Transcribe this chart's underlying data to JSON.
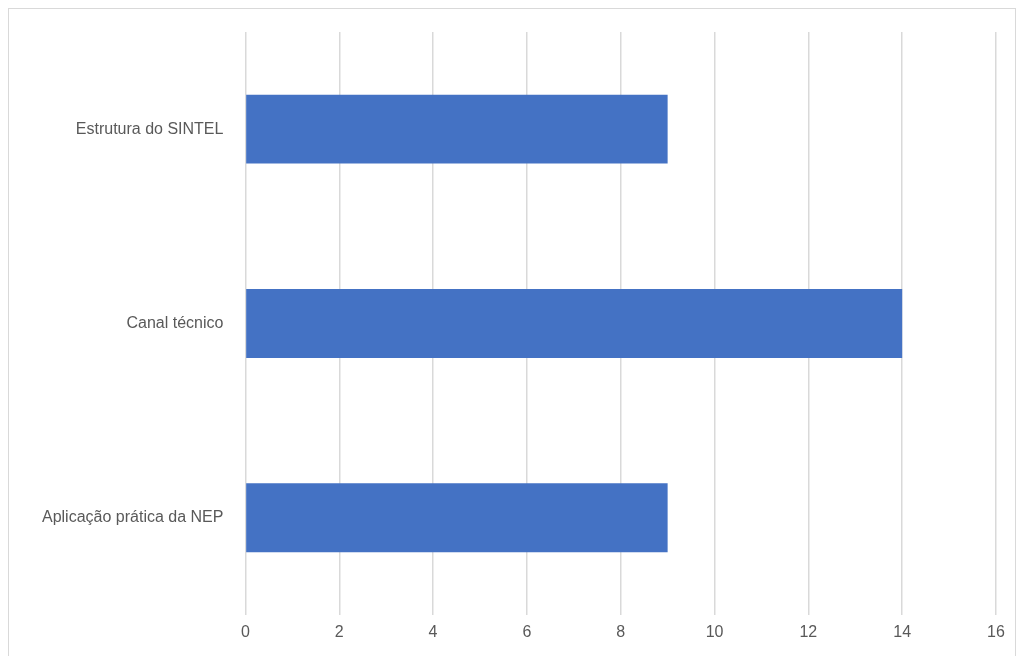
{
  "chart_data": {
    "type": "bar",
    "orientation": "horizontal",
    "categories": [
      "Estrutura do SINTEL",
      "Canal técnico",
      "Aplicação prática da NEP"
    ],
    "values": [
      9,
      14,
      9
    ],
    "color": "#4472c4",
    "xlim": [
      0,
      16
    ],
    "xticks": [
      0,
      2,
      4,
      6,
      8,
      10,
      12,
      14,
      16
    ],
    "grid": "x",
    "legend": false
  }
}
